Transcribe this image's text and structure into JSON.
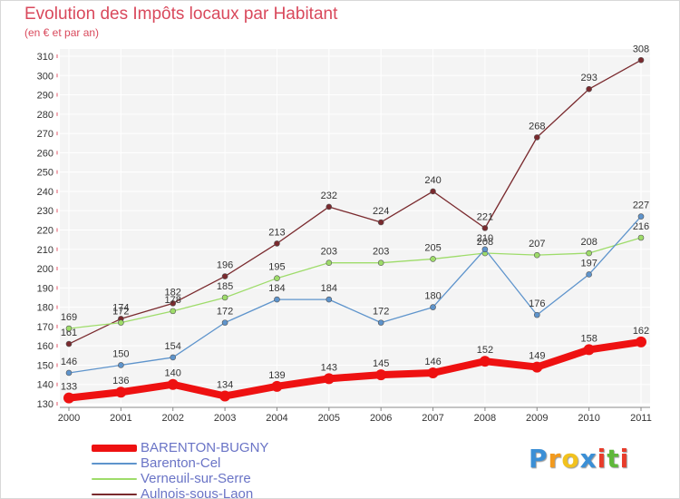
{
  "chart_data": {
    "type": "line",
    "title": "Evolution des Impôts locaux par Habitant",
    "subtitle": "(en € et par an)",
    "categories": [
      "2000",
      "2001",
      "2002",
      "2003",
      "2004",
      "2005",
      "2006",
      "2007",
      "2008",
      "2009",
      "2010",
      "2011"
    ],
    "ylim": [
      130,
      310
    ],
    "yticks": [
      130,
      140,
      150,
      160,
      170,
      180,
      190,
      200,
      210,
      220,
      230,
      240,
      250,
      260,
      270,
      280,
      290,
      300,
      310
    ],
    "grid": true,
    "legend_position": "bottom-left",
    "series": [
      {
        "name": "BARENTON-BUGNY",
        "color": "#ee1111",
        "values": [
          133,
          136,
          140,
          134,
          139,
          143,
          145,
          146,
          152,
          149,
          158,
          162
        ]
      },
      {
        "name": "Barenton-Cel",
        "color": "#5e94cc",
        "values": [
          146,
          150,
          154,
          172,
          184,
          184,
          172,
          180,
          210,
          176,
          197,
          227
        ]
      },
      {
        "name": "Verneuil-sur-Serre",
        "color": "#9edc6a",
        "values": [
          169,
          172,
          178,
          185,
          195,
          203,
          203,
          205,
          208,
          207,
          208,
          216
        ]
      },
      {
        "name": "Aulnois-sous-Laon",
        "color": "#7a2a2e",
        "values": [
          161,
          174,
          182,
          196,
          213,
          232,
          224,
          240,
          221,
          268,
          293,
          308
        ]
      }
    ]
  },
  "brand": {
    "letters": [
      "P",
      "r",
      "o",
      "x",
      "i",
      "t",
      "i"
    ],
    "colors": [
      "#3b8fd6",
      "#f29a1e",
      "#f2c21e",
      "#3b8fd6",
      "#e83c2a",
      "#5fb83a",
      "#e83c2a"
    ]
  }
}
